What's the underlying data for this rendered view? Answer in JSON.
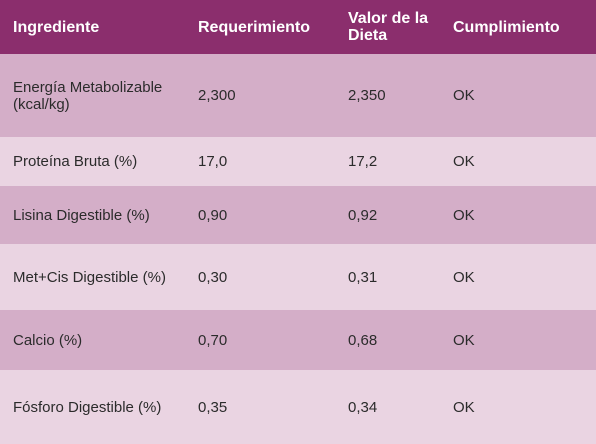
{
  "table": {
    "headers": [
      "Ingrediente",
      "Requerimiento",
      "Valor de la Dieta",
      "Cumplimiento"
    ],
    "rows": [
      [
        "Energía Metabolizable (kcal/kg)",
        "2,300",
        "2,350",
        "OK"
      ],
      [
        "Proteína Bruta (%)",
        "17,0",
        "17,2",
        "OK"
      ],
      [
        "Lisina Digestible (%)",
        "0,90",
        "0,92",
        "OK"
      ],
      [
        "Met+Cis Digestible (%)",
        "0,30",
        "0,31",
        "OK"
      ],
      [
        "Calcio (%)",
        "0,70",
        "0,68",
        "OK"
      ],
      [
        "Fósforo Digestible (%)",
        "0,35",
        "0,34",
        "OK"
      ]
    ]
  },
  "colors": {
    "header_bg": "#8b2e6d",
    "row_odd": "#d4aec8",
    "row_even": "#ead4e2"
  }
}
